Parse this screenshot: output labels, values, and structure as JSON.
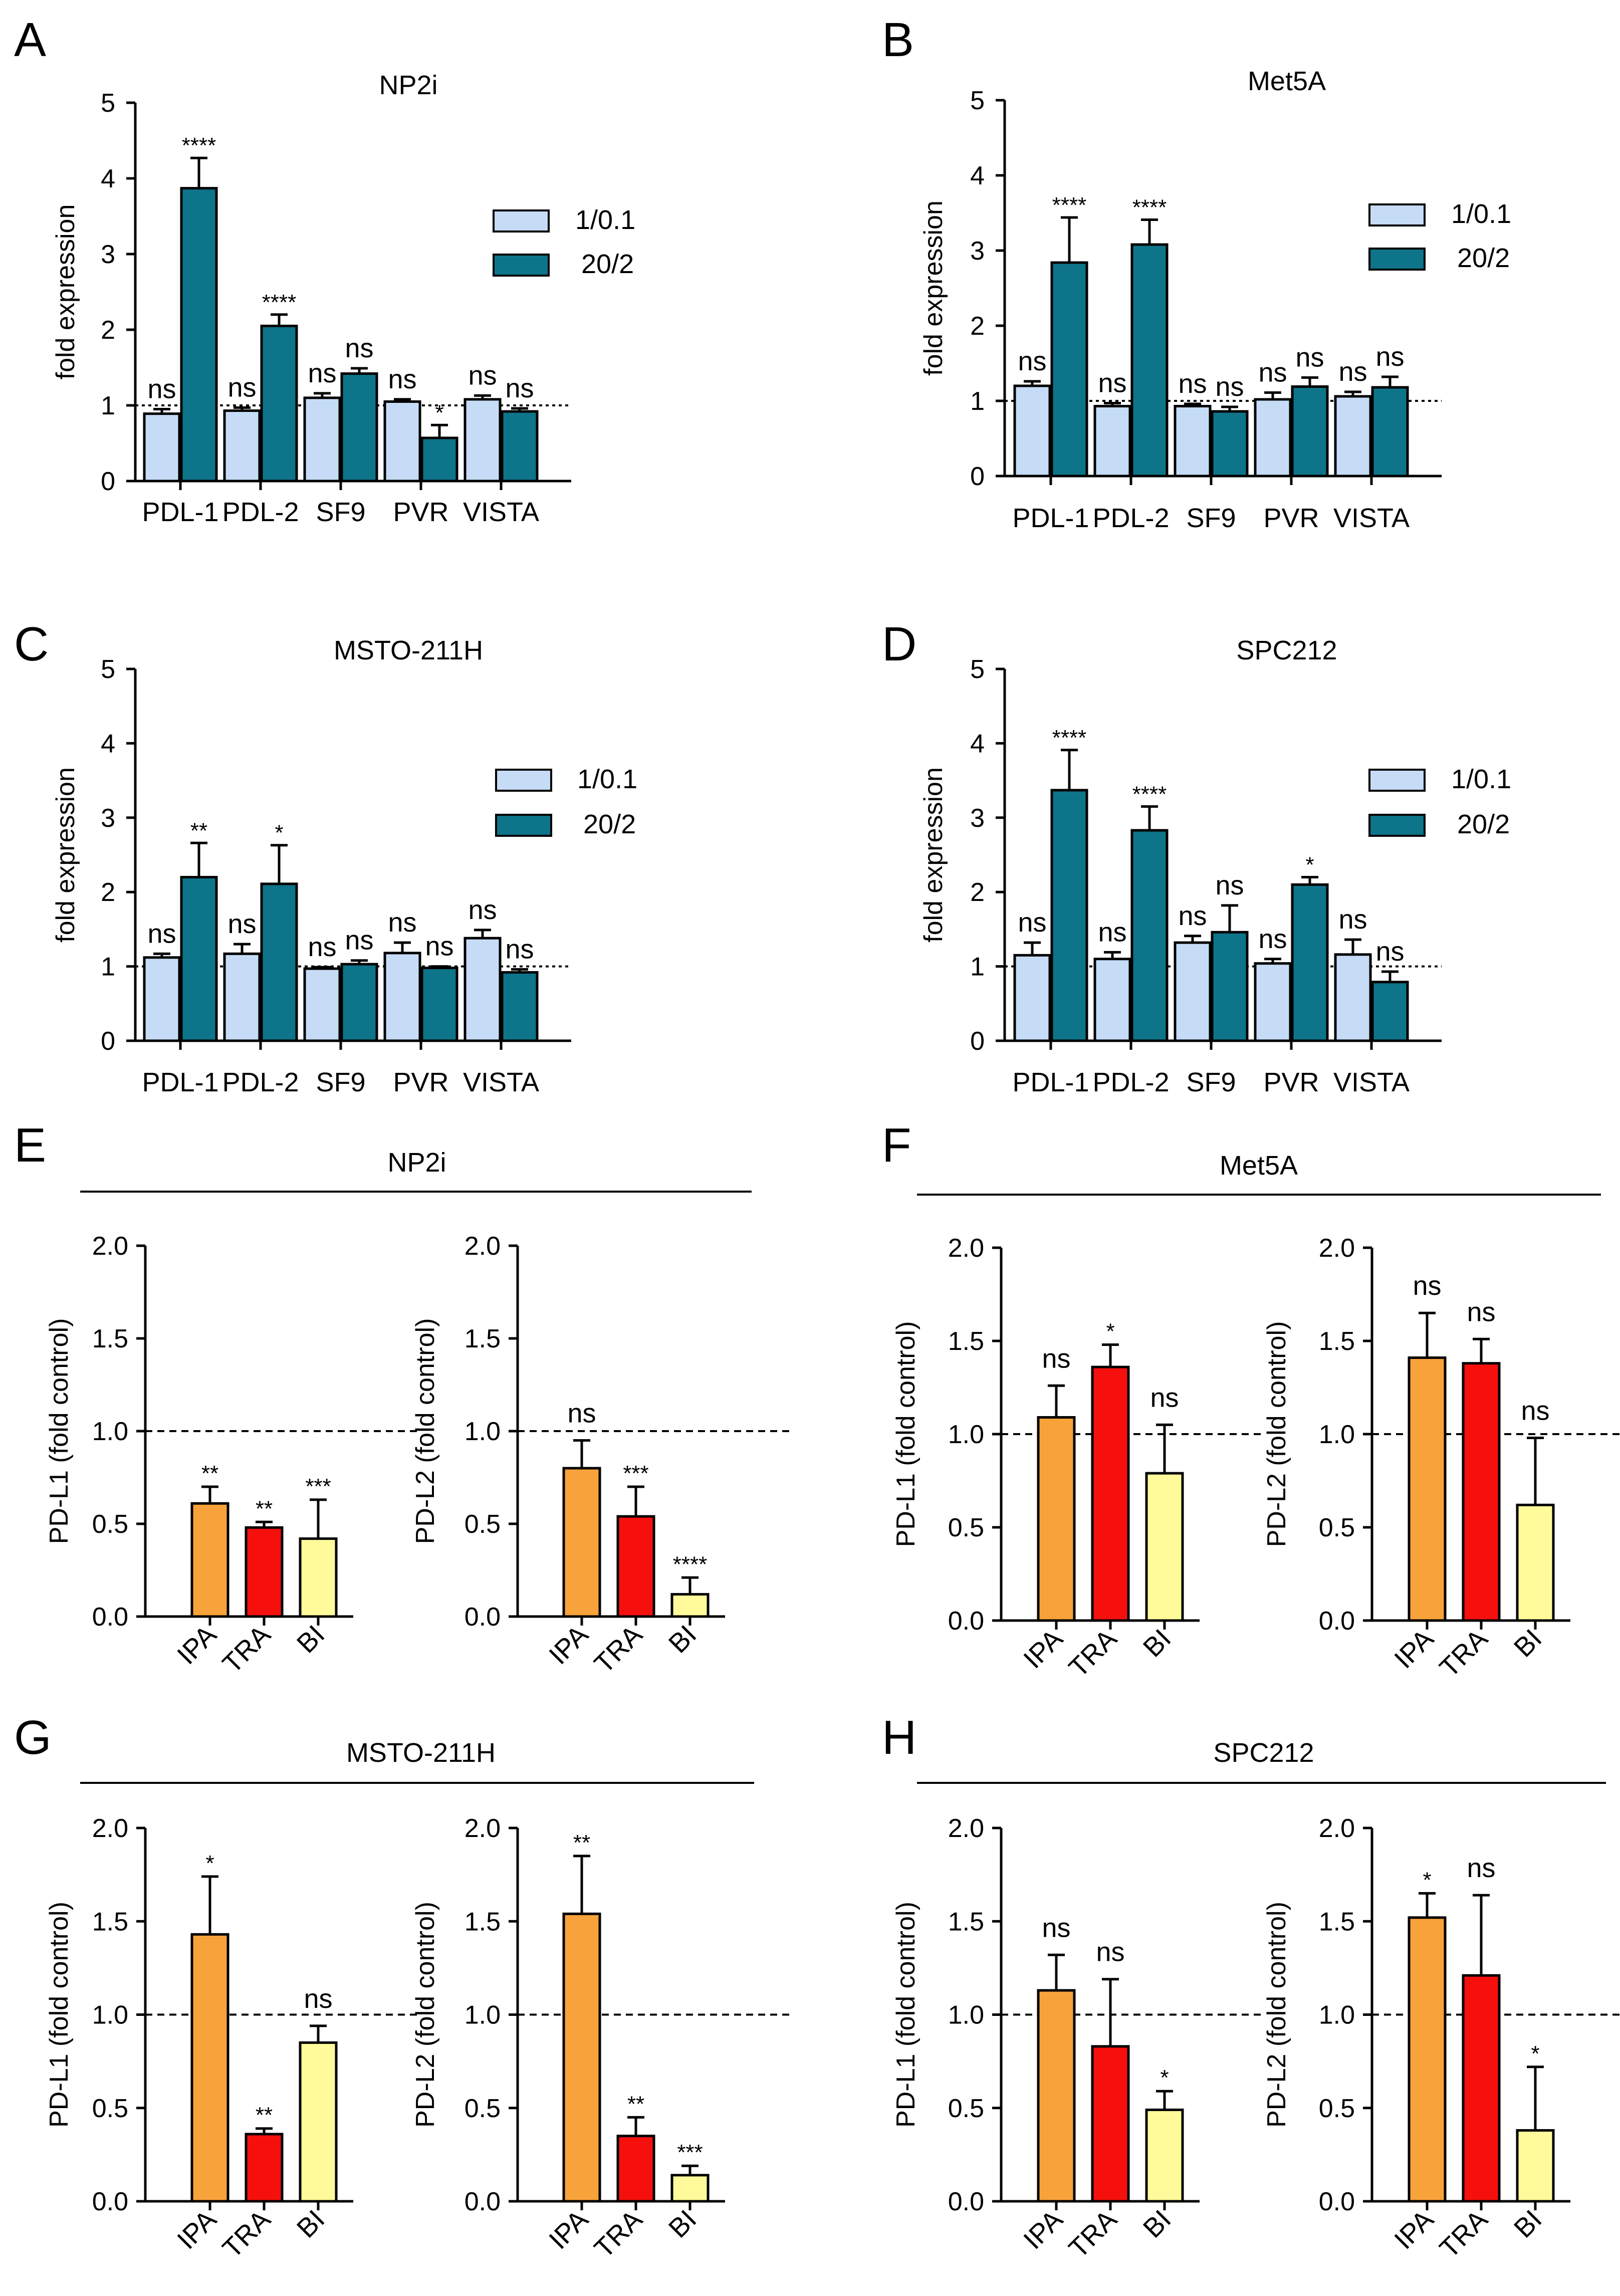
{
  "colors": {
    "light_blue": "#C6DCF6",
    "teal": "#0E7489",
    "orange": "#F7A23A",
    "red": "#F5100E",
    "yellow": "#FFFB9A"
  },
  "chart_data": [
    {
      "type": "bar",
      "panel": "A",
      "title": "NP2i",
      "ylabel": "fold expression",
      "ylim": [
        0,
        5
      ],
      "yticks": [
        "0",
        "1",
        "2",
        "3",
        "4",
        "5"
      ],
      "reference_line": 1,
      "categories": [
        "PDL-1",
        "PDL-2",
        "SF9",
        "PVR",
        "VISTA"
      ],
      "legend": {
        "position": "top-right"
      },
      "series": [
        {
          "name": "1/0.1",
          "color": "#C6DCF6",
          "values": [
            0.89,
            0.93,
            1.1,
            1.05,
            1.08
          ],
          "errors": [
            0.06,
            0.04,
            0.06,
            0.03,
            0.05
          ],
          "sig": [
            "ns",
            "ns",
            "ns",
            "ns",
            "ns"
          ]
        },
        {
          "name": "20/2",
          "color": "#0E7489",
          "values": [
            3.87,
            2.05,
            1.42,
            0.57,
            0.92
          ],
          "errors": [
            0.4,
            0.15,
            0.07,
            0.17,
            0.04
          ],
          "sig": [
            "****",
            "****",
            "ns",
            "*",
            "ns"
          ]
        }
      ]
    },
    {
      "type": "bar",
      "panel": "B",
      "title": "Met5A",
      "ylabel": "fold expression",
      "ylim": [
        0,
        5
      ],
      "yticks": [
        "0",
        "1",
        "2",
        "3",
        "4",
        "5"
      ],
      "reference_line": 1,
      "categories": [
        "PDL-1",
        "PDL-2",
        "SF9",
        "PVR",
        "VISTA"
      ],
      "legend": {
        "position": "top-right"
      },
      "series": [
        {
          "name": "1/0.1",
          "color": "#C6DCF6",
          "values": [
            1.2,
            0.93,
            0.93,
            1.02,
            1.06
          ],
          "errors": [
            0.06,
            0.04,
            0.03,
            0.09,
            0.06
          ],
          "sig": [
            "ns",
            "ns",
            "ns",
            "ns",
            "ns"
          ]
        },
        {
          "name": "20/2",
          "color": "#0E7489",
          "values": [
            2.84,
            3.08,
            0.86,
            1.19,
            1.18
          ],
          "errors": [
            0.6,
            0.33,
            0.06,
            0.12,
            0.14
          ],
          "sig": [
            "****",
            "****",
            "ns",
            "ns",
            "ns"
          ]
        }
      ]
    },
    {
      "type": "bar",
      "panel": "C",
      "title": "MSTO-211H",
      "ylabel": "fold expression",
      "ylim": [
        0,
        5
      ],
      "yticks": [
        "0",
        "1",
        "2",
        "3",
        "4",
        "5"
      ],
      "reference_line": 1,
      "categories": [
        "PDL-1",
        "PDL-2",
        "SF9",
        "PVR",
        "VISTA"
      ],
      "legend": {
        "position": "top-right"
      },
      "series": [
        {
          "name": "1/0.1",
          "color": "#C6DCF6",
          "values": [
            1.12,
            1.17,
            0.97,
            1.18,
            1.38
          ],
          "errors": [
            0.05,
            0.13,
            0.02,
            0.14,
            0.11
          ],
          "sig": [
            "ns",
            "ns",
            "ns",
            "ns",
            "ns"
          ]
        },
        {
          "name": "20/2",
          "color": "#0E7489",
          "values": [
            2.2,
            2.11,
            1.03,
            0.98,
            0.92
          ],
          "errors": [
            0.46,
            0.52,
            0.05,
            0.02,
            0.04
          ],
          "sig": [
            "**",
            "*",
            "ns",
            "ns",
            "ns"
          ]
        }
      ]
    },
    {
      "type": "bar",
      "panel": "D",
      "title": "SPC212",
      "ylabel": "fold expression",
      "ylim": [
        0,
        5
      ],
      "yticks": [
        "0",
        "1",
        "2",
        "3",
        "4",
        "5"
      ],
      "reference_line": 1,
      "categories": [
        "PDL-1",
        "PDL-2",
        "SF9",
        "PVR",
        "VISTA"
      ],
      "legend": {
        "position": "top-right"
      },
      "series": [
        {
          "name": "1/0.1",
          "color": "#C6DCF6",
          "values": [
            1.15,
            1.1,
            1.32,
            1.04,
            1.16
          ],
          "errors": [
            0.17,
            0.09,
            0.09,
            0.06,
            0.2
          ],
          "sig": [
            "ns",
            "ns",
            "ns",
            "ns",
            "ns"
          ]
        },
        {
          "name": "20/2",
          "color": "#0E7489",
          "values": [
            3.37,
            2.83,
            1.46,
            2.1,
            0.79
          ],
          "errors": [
            0.54,
            0.32,
            0.36,
            0.1,
            0.14
          ],
          "sig": [
            "****",
            "****",
            "ns",
            "*",
            "ns"
          ]
        }
      ]
    },
    {
      "type": "bar",
      "panel": "E",
      "group_title": "NP2i",
      "plots": [
        {
          "ylabel": "PD-L1 (fold control)",
          "ylim": [
            0,
            2
          ],
          "yticks": [
            "0.0",
            "0.5",
            "1.0",
            "1.5",
            "2.0"
          ],
          "reference_line": 1.0,
          "categories": [
            "IPA",
            "TRA",
            "BI"
          ],
          "values": [
            0.61,
            0.48,
            0.42
          ],
          "errors": [
            0.09,
            0.03,
            0.21
          ],
          "sig": [
            "**",
            "**",
            "***"
          ]
        },
        {
          "ylabel": "PD-L2 (fold control)",
          "ylim": [
            0,
            2
          ],
          "yticks": [
            "0.0",
            "0.5",
            "1.0",
            "1.5",
            "2.0"
          ],
          "reference_line": 1.0,
          "categories": [
            "IPA",
            "TRA",
            "BI"
          ],
          "values": [
            0.8,
            0.54,
            0.12
          ],
          "errors": [
            0.15,
            0.16,
            0.09
          ],
          "sig": [
            "ns",
            "***",
            "****"
          ]
        }
      ]
    },
    {
      "type": "bar",
      "panel": "F",
      "group_title": "Met5A",
      "plots": [
        {
          "ylabel": "PD-L1 (fold control)",
          "ylim": [
            0,
            2
          ],
          "yticks": [
            "0.0",
            "0.5",
            "1.0",
            "1.5",
            "2.0"
          ],
          "reference_line": 1.0,
          "categories": [
            "IPA",
            "TRA",
            "BI"
          ],
          "values": [
            1.09,
            1.36,
            0.79
          ],
          "errors": [
            0.17,
            0.12,
            0.26
          ],
          "sig": [
            "ns",
            "*",
            "ns"
          ]
        },
        {
          "ylabel": "PD-L2 (fold control)",
          "ylim": [
            0,
            2
          ],
          "yticks": [
            "0.0",
            "0.5",
            "1.0",
            "1.5",
            "2.0"
          ],
          "reference_line": 1.0,
          "categories": [
            "IPA",
            "TRA",
            "BI"
          ],
          "values": [
            1.41,
            1.38,
            0.62
          ],
          "errors": [
            0.24,
            0.13,
            0.36
          ],
          "sig": [
            "ns",
            "ns",
            "ns"
          ]
        }
      ]
    },
    {
      "type": "bar",
      "panel": "G",
      "group_title": "MSTO-211H",
      "plots": [
        {
          "ylabel": "PD-L1 (fold control)",
          "ylim": [
            0,
            2
          ],
          "yticks": [
            "0.0",
            "0.5",
            "1.0",
            "1.5",
            "2.0"
          ],
          "reference_line": 1.0,
          "categories": [
            "IPA",
            "TRA",
            "BI"
          ],
          "values": [
            1.43,
            0.36,
            0.85
          ],
          "errors": [
            0.31,
            0.03,
            0.09
          ],
          "sig": [
            "*",
            "**",
            "ns"
          ]
        },
        {
          "ylabel": "PD-L2 (fold control)",
          "ylim": [
            0,
            2
          ],
          "yticks": [
            "0.0",
            "0.5",
            "1.0",
            "1.5",
            "2.0"
          ],
          "reference_line": 1.0,
          "categories": [
            "IPA",
            "TRA",
            "BI"
          ],
          "values": [
            1.54,
            0.35,
            0.14
          ],
          "errors": [
            0.31,
            0.1,
            0.05
          ],
          "sig": [
            "**",
            "**",
            "***"
          ]
        }
      ]
    },
    {
      "type": "bar",
      "panel": "H",
      "group_title": "SPC212",
      "plots": [
        {
          "ylabel": "PD-L1 (fold control)",
          "ylim": [
            0,
            2
          ],
          "yticks": [
            "0.0",
            "0.5",
            "1.0",
            "1.5",
            "2.0"
          ],
          "reference_line": 1.0,
          "categories": [
            "IPA",
            "TRA",
            "BI"
          ],
          "values": [
            1.13,
            0.83,
            0.49
          ],
          "errors": [
            0.19,
            0.36,
            0.1
          ],
          "sig": [
            "ns",
            "ns",
            "*"
          ]
        },
        {
          "ylabel": "PD-L2 (fold control)",
          "ylim": [
            0,
            2
          ],
          "yticks": [
            "0.0",
            "0.5",
            "1.0",
            "1.5",
            "2.0"
          ],
          "reference_line": 1.0,
          "categories": [
            "IPA",
            "TRA",
            "BI"
          ],
          "values": [
            1.52,
            1.21,
            0.38
          ],
          "errors": [
            0.13,
            0.43,
            0.34
          ],
          "sig": [
            "*",
            "ns",
            "*"
          ]
        }
      ]
    }
  ]
}
